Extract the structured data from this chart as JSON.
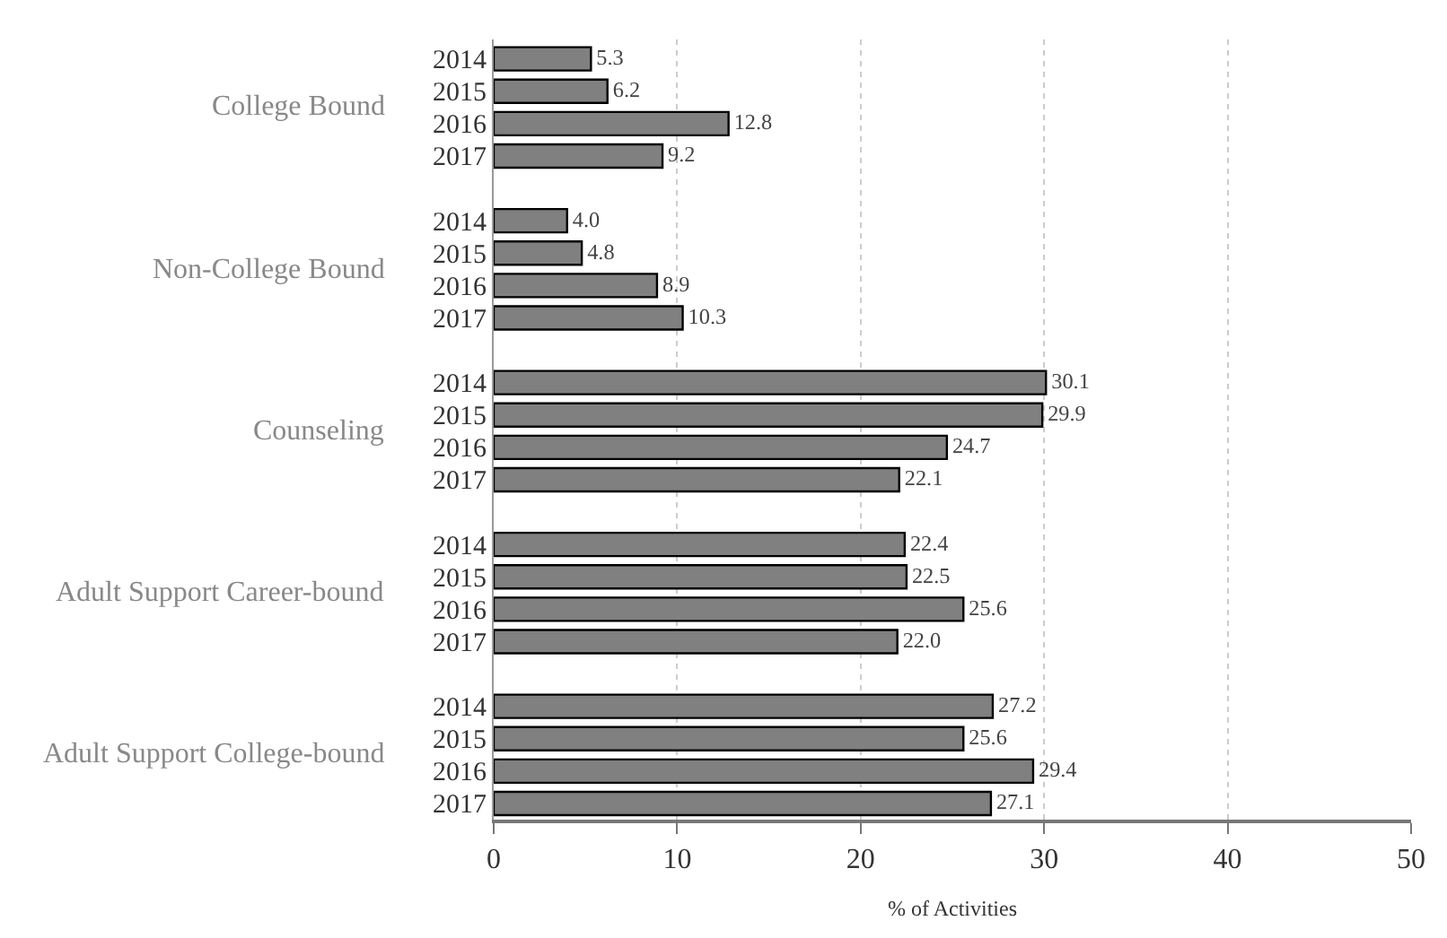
{
  "chart_data": {
    "type": "bar",
    "orientation": "horizontal",
    "xlabel": "% of Activities",
    "categories": [
      "2014",
      "2015",
      "2016",
      "2017",
      null,
      "2014",
      "2015",
      "2016",
      "2017",
      null,
      "2014",
      "2015",
      "2016",
      "2017",
      null,
      "2014",
      "2015",
      "2016",
      "2017",
      null,
      "2014",
      "2015",
      "2016",
      "2017"
    ],
    "values": [
      5.3,
      6.2,
      12.8,
      9.2,
      null,
      4.0,
      4.8,
      8.9,
      10.3,
      null,
      30.1,
      29.9,
      24.7,
      22.1,
      null,
      22.4,
      22.5,
      25.6,
      22.0,
      null,
      27.2,
      25.6,
      29.4,
      27.1
    ],
    "color": "#808080",
    "annotations": [
      "College Bound",
      "Non-College Bound",
      "Counseling",
      "Adult Support Career-bound",
      "Adult Support College-bound"
    ],
    "xlim": [
      0,
      50
    ],
    "xticks": [
      0,
      10,
      20,
      30,
      40,
      50
    ],
    "value_labels": [
      "5.3",
      "6.2",
      "12.8",
      "9.2",
      null,
      "4.0",
      "4.8",
      "8.9",
      "10.3",
      null,
      "30.1",
      "29.9",
      "24.7",
      "22.1",
      null,
      "22.4",
      "22.5",
      "25.6",
      "22.0",
      null,
      "27.2",
      "25.6",
      "29.4",
      "27.1"
    ],
    "grid": "x"
  }
}
